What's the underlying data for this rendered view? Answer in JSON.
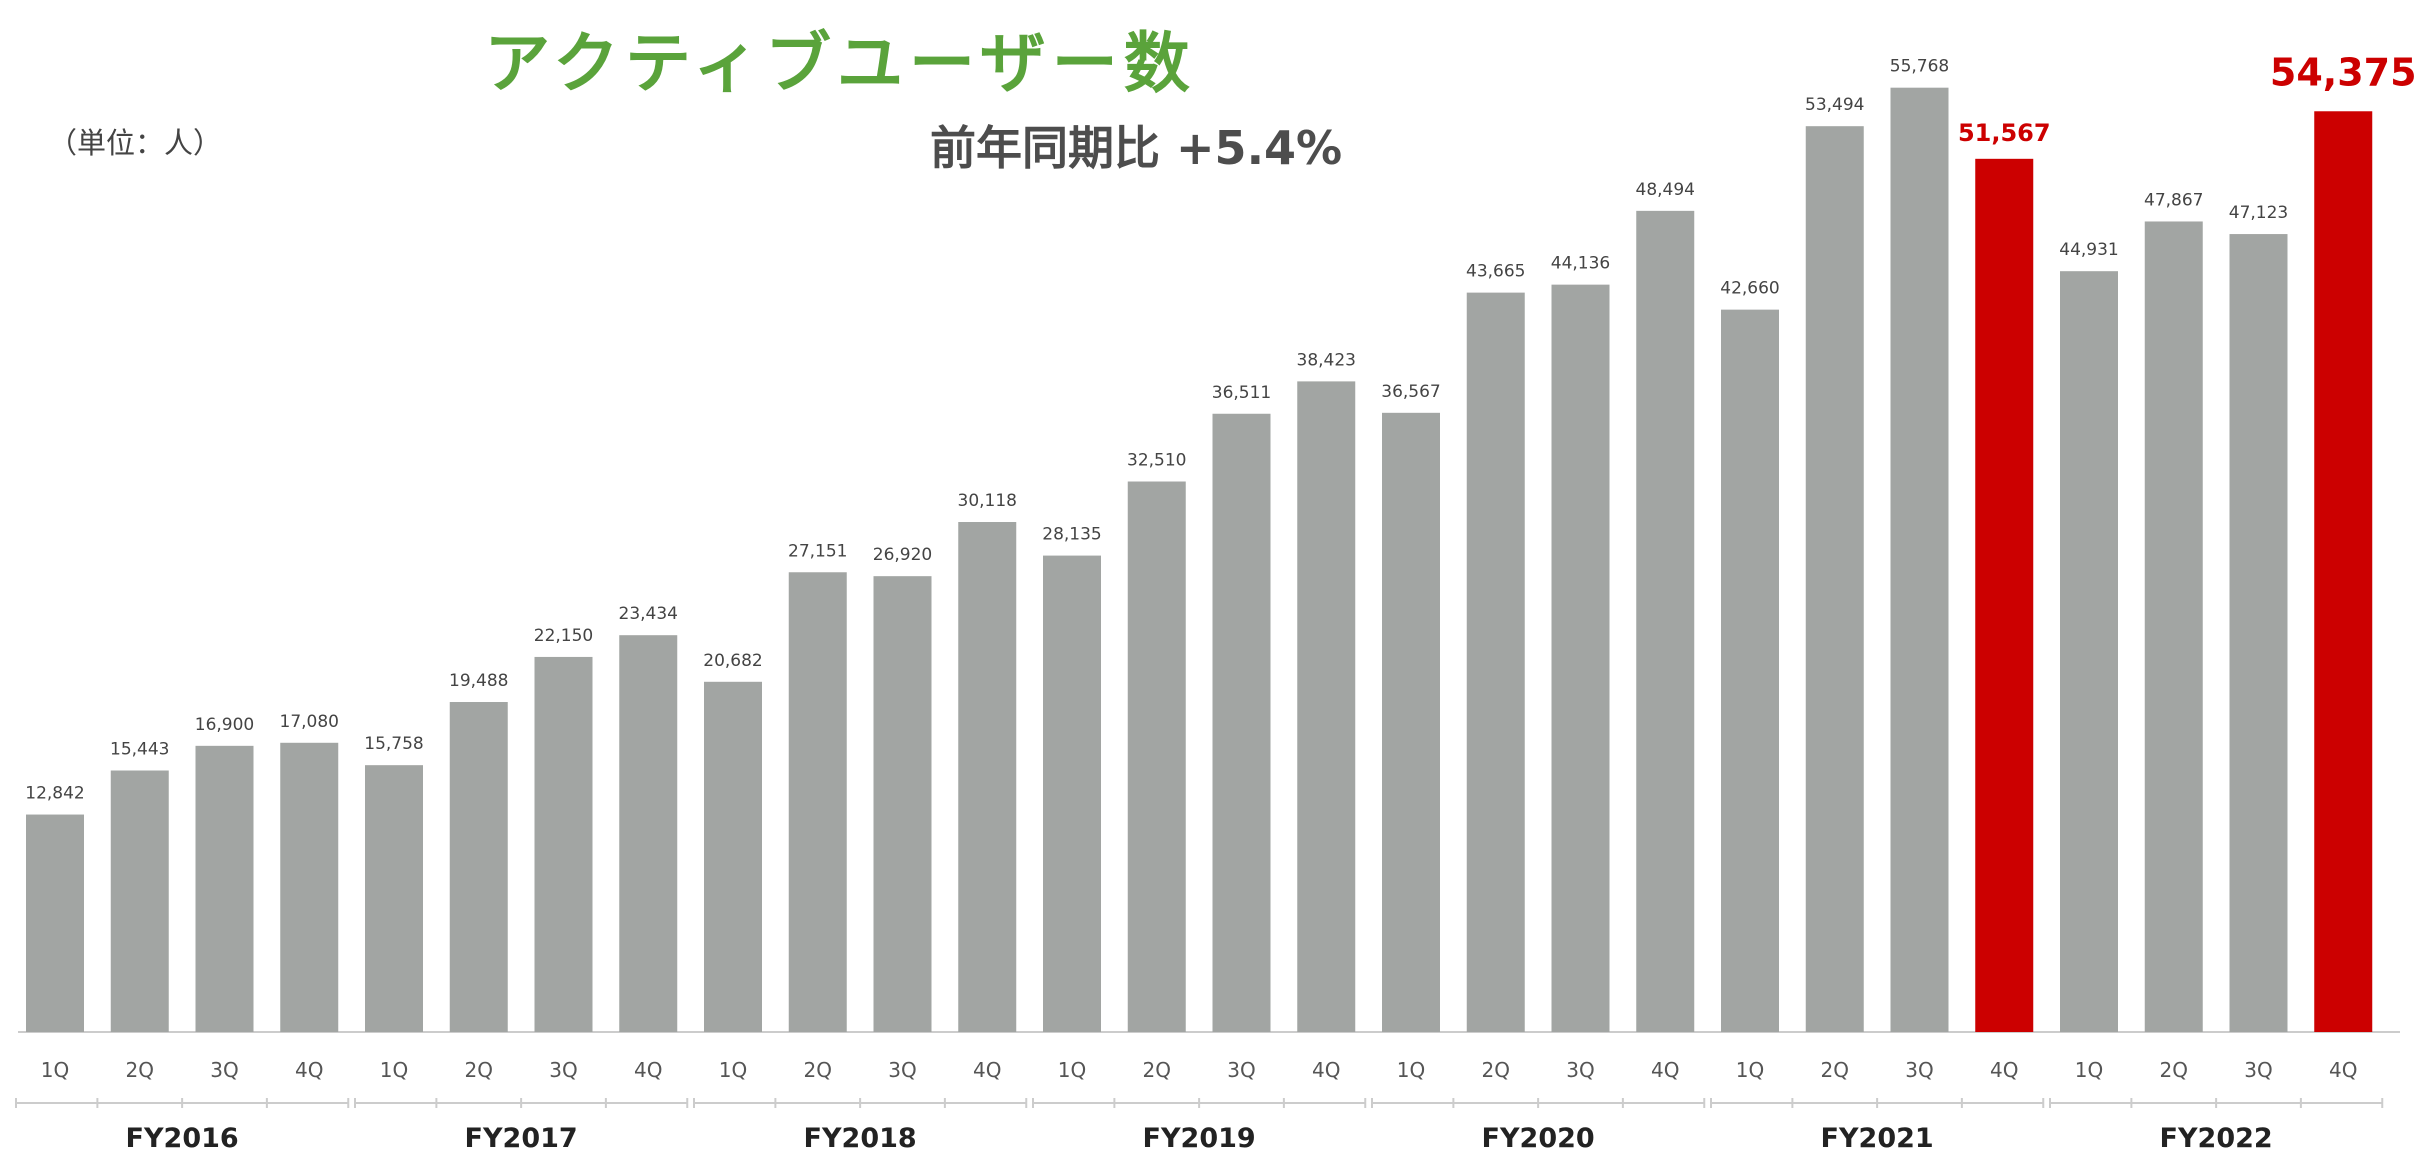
{
  "chart_data": {
    "type": "bar",
    "title": "アクティブユーザー数",
    "subtitle": "前年同期比 +5.4%",
    "unit_label": "（単位：人）",
    "groups": [
      "FY2016",
      "FY2017",
      "FY2018",
      "FY2019",
      "FY2020",
      "FY2021",
      "FY2022"
    ],
    "quarter_labels": [
      "1Q",
      "2Q",
      "3Q",
      "4Q"
    ],
    "values": [
      12842,
      15443,
      16900,
      17080,
      15758,
      19488,
      22150,
      23434,
      20682,
      27151,
      26920,
      30118,
      28135,
      32510,
      36511,
      38423,
      36567,
      43665,
      44136,
      48494,
      42660,
      53494,
      55768,
      51567,
      44931,
      47867,
      47123,
      54375
    ],
    "value_labels": [
      "12,842",
      "15,443",
      "16,900",
      "17,080",
      "15,758",
      "19,488",
      "22,150",
      "23,434",
      "20,682",
      "27,151",
      "26,920",
      "30,118",
      "28,135",
      "32,510",
      "36,511",
      "38,423",
      "36,567",
      "43,665",
      "44,136",
      "48,494",
      "42,660",
      "53,494",
      "55,768",
      "51,567",
      "44,931",
      "47,867",
      "47,123",
      "54,375"
    ],
    "highlighted": [
      "FY2021 4Q",
      "FY2022 4Q"
    ],
    "emphasized_label": "FY2022 4Q",
    "ylim": [
      0,
      58000
    ],
    "grid": false,
    "colors": {
      "bar": "#a2a5a3",
      "highlight": "#cc0000",
      "title": "#5aa33b",
      "axis": "#cccccc",
      "tick_text": "#555555",
      "group_text": "#222222",
      "value_text": "#444444"
    }
  }
}
